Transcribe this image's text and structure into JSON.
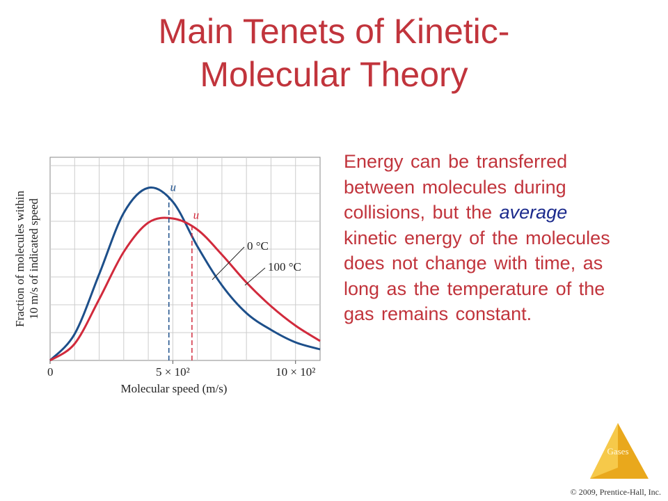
{
  "title": "Main Tenets of Kinetic-Molecular Theory",
  "chart_data": {
    "type": "line",
    "x": [
      0,
      100,
      200,
      300,
      400,
      500,
      600,
      700,
      800,
      900,
      1000,
      1100
    ],
    "series": [
      {
        "name": "0 °C",
        "color": "#1d4f8a",
        "values": [
          0,
          0.95,
          3.1,
          5.3,
          6.2,
          5.7,
          4.1,
          2.7,
          1.7,
          1.1,
          0.65,
          0.4
        ]
      },
      {
        "name": "100 °C",
        "color": "#d12a3c",
        "values": [
          0,
          0.6,
          2.2,
          3.9,
          4.95,
          5.1,
          4.7,
          3.8,
          2.8,
          1.95,
          1.25,
          0.7
        ]
      }
    ],
    "xlim": [
      0,
      1100
    ],
    "ylim": [
      0,
      7.3
    ],
    "xticks": [
      0,
      {
        "value": 500,
        "label": "5 × 10²"
      },
      {
        "value": 1000,
        "label": "10 × 10²"
      }
    ],
    "xlabel": "Molecular speed (m/s)",
    "ylabel": [
      "Fraction of molecules within",
      "10 m/s of indicated speed"
    ],
    "grid": true,
    "markers": [
      {
        "label": "u",
        "x": 484,
        "series": 0
      },
      {
        "label": "u",
        "x": 578,
        "series": 1
      }
    ]
  },
  "body": [
    "Energy can be transferred between molecules during collisions, but the",
    "average",
    "kinetic energy of the molecules does not change with time, as long as the temperature of the gas remains constant."
  ],
  "footer": {
    "section": "Gases",
    "copyright": "© 2009, Prentice-Hall, Inc."
  }
}
